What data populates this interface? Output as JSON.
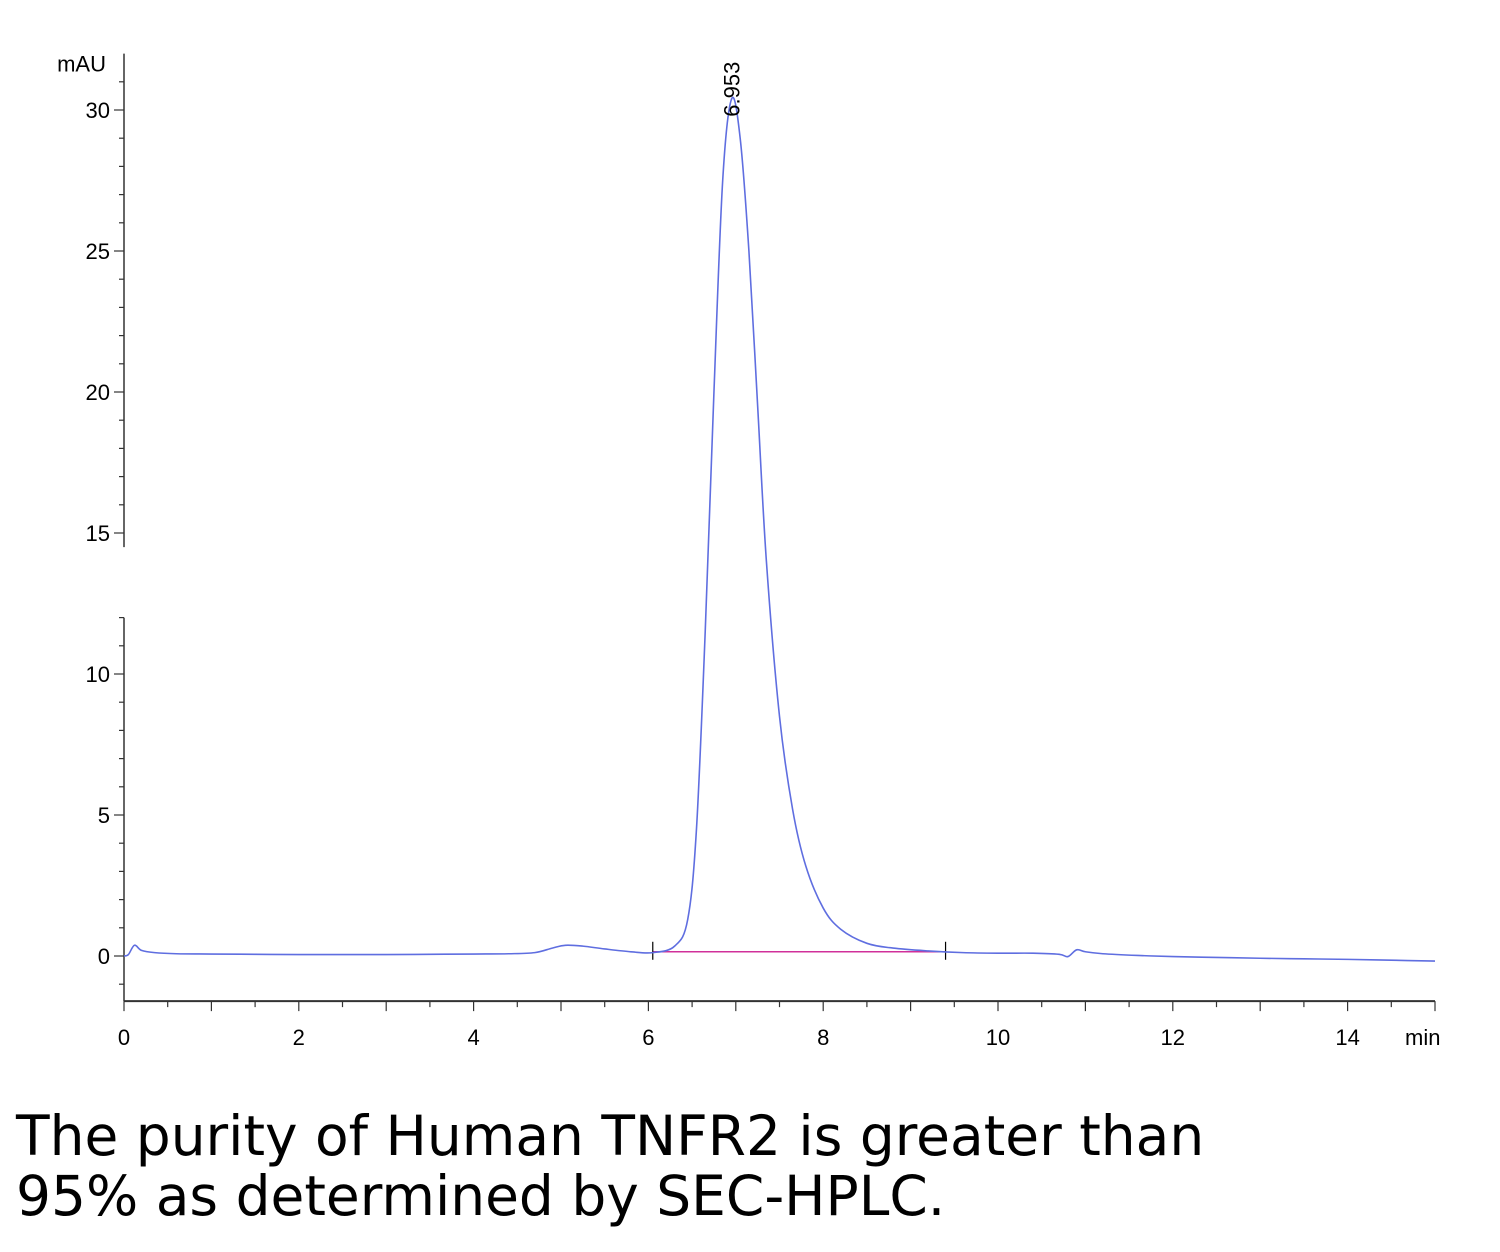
{
  "chart_data": {
    "type": "line",
    "y_unit": "mAU",
    "x_unit": "min",
    "xlim": [
      0,
      15
    ],
    "ylim": [
      -1.6,
      32
    ],
    "x_ticks": [
      0,
      2,
      4,
      6,
      8,
      10,
      12,
      14
    ],
    "y_ticks": [
      0,
      5,
      10,
      15,
      20,
      25,
      30
    ],
    "y_axis_break": [
      12,
      14.5
    ],
    "grid": false,
    "legend": "none",
    "peak": {
      "label": "6.953",
      "x": 6.953,
      "y": 30.4
    },
    "baseline": {
      "x": [
        6.05,
        9.4
      ],
      "y": [
        0.15,
        0.15
      ]
    },
    "series": [
      {
        "color": "#5f6ee0",
        "x": [
          0,
          0.05,
          0.12,
          0.2,
          0.35,
          0.6,
          1.0,
          1.5,
          2.0,
          2.5,
          3.0,
          3.5,
          4.0,
          4.4,
          4.7,
          4.9,
          5.05,
          5.25,
          5.5,
          5.8,
          6.05,
          6.3,
          6.45,
          6.55,
          6.65,
          6.75,
          6.85,
          6.953,
          7.05,
          7.15,
          7.25,
          7.35,
          7.5,
          7.65,
          7.8,
          8.0,
          8.2,
          8.5,
          8.8,
          9.2,
          9.6,
          10.0,
          10.4,
          10.7,
          10.8,
          10.9,
          11.0,
          11.2,
          11.6,
          12.0,
          12.5,
          13.0,
          13.5,
          14.0,
          14.5,
          15.0
        ],
        "y": [
          0.0,
          0.05,
          0.38,
          0.2,
          0.12,
          0.08,
          0.07,
          0.06,
          0.05,
          0.05,
          0.05,
          0.06,
          0.07,
          0.08,
          0.12,
          0.28,
          0.38,
          0.35,
          0.25,
          0.15,
          0.12,
          0.35,
          1.3,
          4.5,
          11.5,
          20.0,
          27.5,
          30.4,
          29.0,
          25.0,
          19.5,
          14.0,
          8.5,
          5.2,
          3.2,
          1.7,
          0.95,
          0.45,
          0.28,
          0.18,
          0.12,
          0.1,
          0.1,
          0.06,
          -0.02,
          0.22,
          0.15,
          0.08,
          0.02,
          -0.02,
          -0.05,
          -0.08,
          -0.1,
          -0.12,
          -0.15,
          -0.18
        ]
      }
    ]
  },
  "caption": {
    "line1": "The purity of Human TNFR2 is greater than",
    "line2": "95% as determined by SEC-HPLC."
  }
}
